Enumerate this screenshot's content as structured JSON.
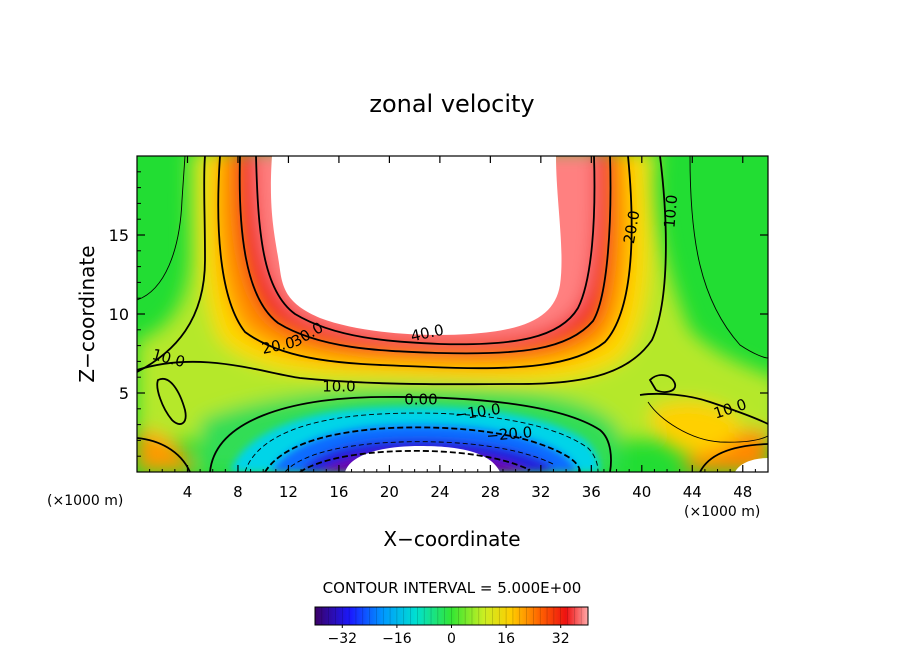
{
  "chart_data": {
    "type": "heatmap",
    "title": "zonal velocity",
    "xlabel": "X−coordinate",
    "ylabel": "Z−coordinate",
    "x_unit_label": "(×1000 m)",
    "x_unit_label_right": "(×1000 m)",
    "xlim": [
      0,
      50
    ],
    "ylim": [
      0,
      20
    ],
    "x_ticks": [
      4,
      8,
      12,
      16,
      20,
      24,
      28,
      32,
      36,
      40,
      44,
      48
    ],
    "y_ticks": [
      5,
      10,
      15
    ],
    "contour_interval_label": "CONTOUR INTERVAL = 5.000E+00",
    "colorbar": {
      "ticks": [
        "−32",
        "−16",
        "0",
        "16",
        "32"
      ],
      "tick_values": [
        -32,
        -16,
        0,
        16,
        32
      ],
      "range": [
        -40,
        40
      ],
      "min_color": "#4b0082",
      "max_color": "#ffd6d6"
    },
    "contour_labels": [
      {
        "text": "40.0",
        "x": 23.0,
        "z": 8.8,
        "rotate": 12
      },
      {
        "text": "30.0",
        "x": 13.5,
        "z": 8.7,
        "rotate": 30
      },
      {
        "text": "20.0",
        "x": 11.2,
        "z": 8.0,
        "rotate": 12
      },
      {
        "text": "10.0",
        "x": 2.5,
        "z": 7.2,
        "rotate": -15
      },
      {
        "text": "10.0",
        "x": 16.0,
        "z": 5.4,
        "rotate": 0
      },
      {
        "text": "0.00",
        "x": 22.5,
        "z": 4.6,
        "rotate": 0
      },
      {
        "text": "−10.0",
        "x": 27.0,
        "z": 3.8,
        "rotate": 8
      },
      {
        "text": "−20.0",
        "x": 29.5,
        "z": 2.4,
        "rotate": 5
      },
      {
        "text": "20.0",
        "x": 39.2,
        "z": 15.5,
        "rotate": 80
      },
      {
        "text": "10.0",
        "x": 42.3,
        "z": 16.5,
        "rotate": 85
      },
      {
        "text": "10.0",
        "x": 47.0,
        "z": 4.0,
        "rotate": 18
      }
    ],
    "regions": [
      {
        "name": "upper-right jet max",
        "x_range": [
          11,
          35
        ],
        "z_range": [
          8,
          20
        ],
        "value": ">40"
      },
      {
        "name": "lower return flow min",
        "x_range": [
          15,
          30
        ],
        "z_range": [
          0,
          2
        ],
        "value": "<-30"
      }
    ]
  },
  "colors": {
    "plot_border": "#000000",
    "text": "#000000",
    "missing_fill": "#ffffff"
  }
}
